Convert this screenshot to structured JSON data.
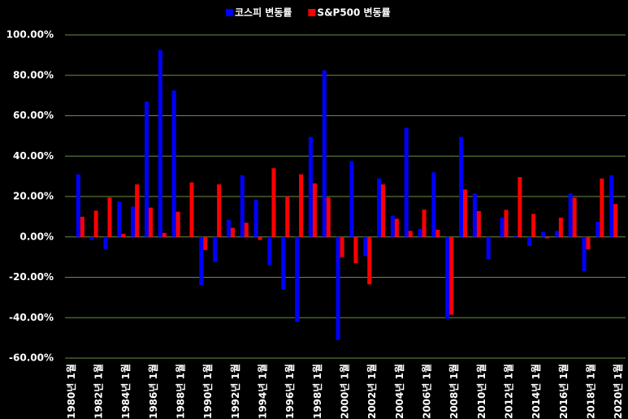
{
  "chart_data": {
    "type": "bar",
    "categories": [
      "1980년 1월",
      null,
      "1982년 1월",
      null,
      "1984년 1월",
      null,
      "1986년 1월",
      null,
      "1988년 1월",
      null,
      "1990년 1월",
      null,
      "1992년 1월",
      null,
      "1994년 1월",
      null,
      "1996년 1월",
      null,
      "1998년 1월",
      null,
      "2000년 1월",
      null,
      "2002년 1월",
      null,
      "2004년 1월",
      null,
      "2006년 1월",
      null,
      "2008년 1월",
      null,
      "2010년 1월",
      null,
      "2012년 1월",
      null,
      "2014년 1월",
      null,
      "2016년 1월",
      null,
      "2018년 1월",
      null,
      "2020년 1월"
    ],
    "series": [
      {
        "name": "코스피 변동률",
        "color": "#0000ff",
        "values": [
          null,
          31,
          -1.5,
          -6,
          17.5,
          15,
          67,
          92.5,
          72.5,
          0,
          -24,
          -12.5,
          8.5,
          30.5,
          18.5,
          -14,
          -26,
          -42,
          49.5,
          82.5,
          -51,
          37.5,
          -9.5,
          29,
          10.5,
          54,
          4,
          32,
          -40.5,
          49.5,
          21.5,
          -11,
          9.5,
          0.5,
          -4.5,
          2.5,
          3,
          21.5,
          -17,
          7.5,
          30.5
        ]
      },
      {
        "name": "S&P500 변동률",
        "color": "#ff0000",
        "values": [
          null,
          10,
          13,
          19.5,
          1.5,
          26,
          14.5,
          2,
          12.5,
          27,
          -6.5,
          26,
          4.5,
          7,
          -1.5,
          34,
          20,
          31,
          26.5,
          19.5,
          -10,
          -13,
          -23.5,
          26,
          9,
          3,
          13.5,
          3.5,
          -38.5,
          23.5,
          12.8,
          0,
          13.4,
          29.6,
          11.4,
          -0.7,
          9.5,
          19.4,
          -6.2,
          28.9,
          16.3
        ]
      }
    ],
    "ylim": [
      -60,
      100
    ],
    "yticks": [
      {
        "value": -60,
        "label": "-60.00%"
      },
      {
        "value": -40,
        "label": "-40.00%"
      },
      {
        "value": -20,
        "label": "-20.00%"
      },
      {
        "value": 0,
        "label": "0.00%"
      },
      {
        "value": 20,
        "label": "20.00%"
      },
      {
        "value": 40,
        "label": "40.00%"
      },
      {
        "value": 60,
        "label": "60.00%"
      },
      {
        "value": 80,
        "label": "80.00%"
      },
      {
        "value": 100,
        "label": "100.00%"
      }
    ],
    "grid": true,
    "legend": "top"
  }
}
